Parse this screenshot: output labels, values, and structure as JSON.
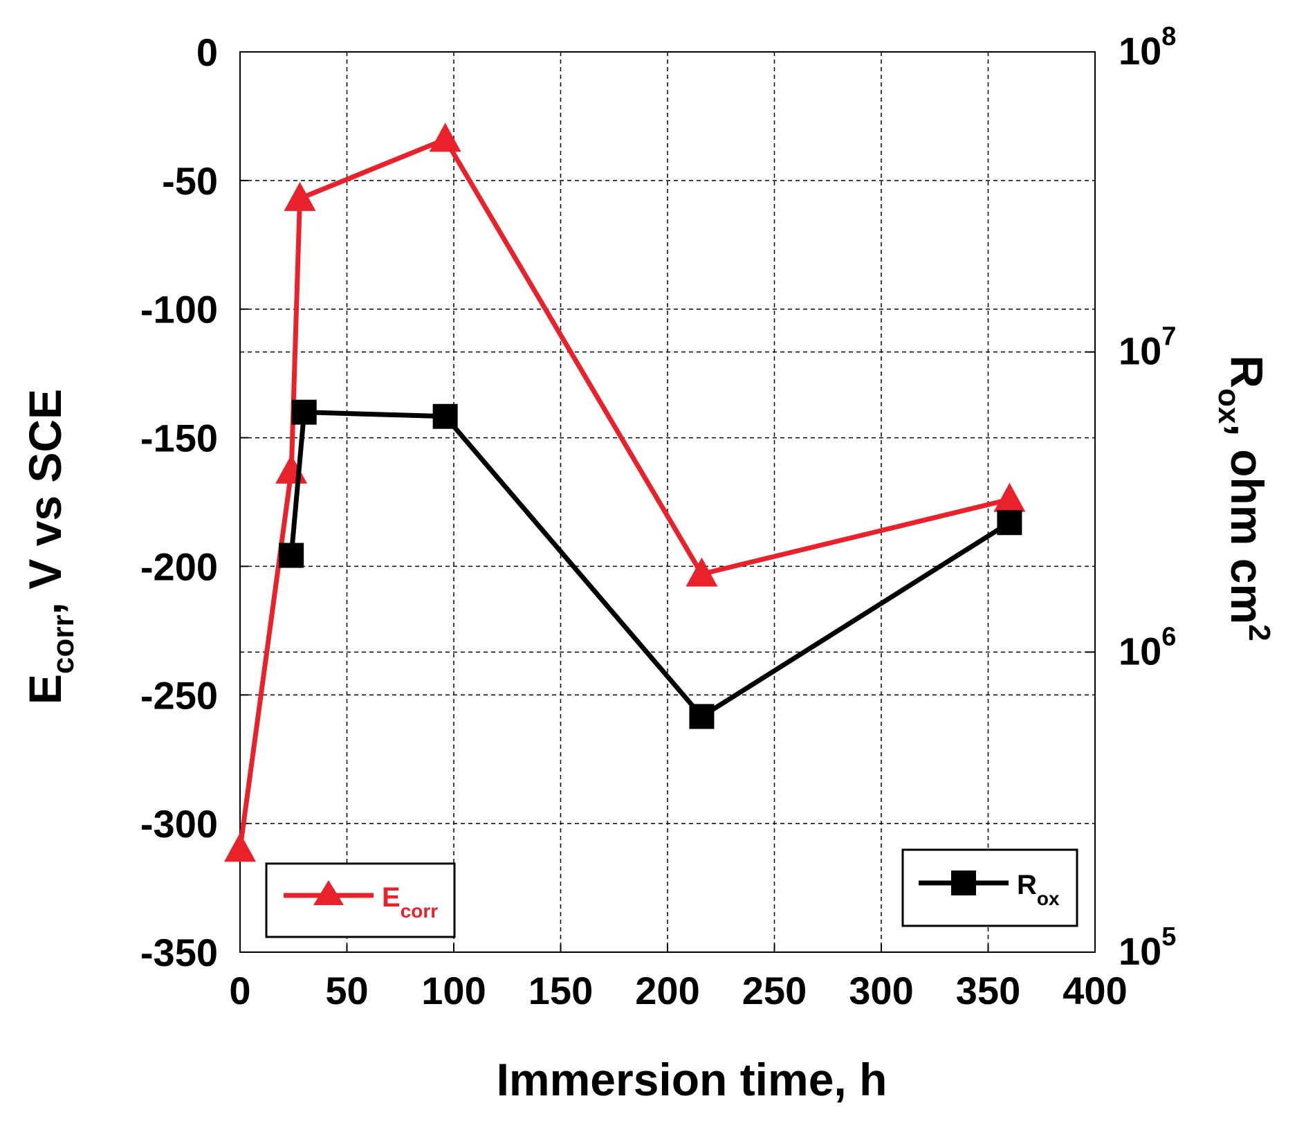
{
  "chart_data": {
    "type": "line",
    "xlabel": "Immersion time, h",
    "ylabel_left": {
      "base": "E",
      "sub": "corr",
      "rest": ", V vs SCE"
    },
    "ylabel_right": {
      "base": "R",
      "sub": "ox",
      "rest": ", ohm cm",
      "sup": "2"
    },
    "xlim": [
      0,
      400
    ],
    "ylim_left": [
      -350,
      0
    ],
    "ylim_right": [
      100000,
      100000000
    ],
    "right_scale": "log",
    "grid": true,
    "x_ticks": [
      "0",
      "50",
      "100",
      "150",
      "200",
      "250",
      "300",
      "350",
      "400"
    ],
    "y_left_ticks": [
      "0",
      "-50",
      "-100",
      "-150",
      "-200",
      "-250",
      "-300",
      "-350"
    ],
    "y_right_ticks": [
      {
        "base": "10",
        "exp": "8"
      },
      {
        "base": "10",
        "exp": "7"
      },
      {
        "base": "10",
        "exp": "6"
      },
      {
        "base": "10",
        "exp": "5"
      }
    ],
    "series": [
      {
        "name": "E_corr",
        "legend": {
          "base": "E",
          "sub": "corr"
        },
        "axis": "left",
        "marker": "triangle",
        "color": "#e8212a",
        "x": [
          0,
          24,
          28,
          96,
          216,
          360
        ],
        "y": [
          -310,
          -163,
          -57,
          -34,
          -203,
          -174
        ]
      },
      {
        "name": "R_ox",
        "legend": {
          "base": "R",
          "sub": "ox"
        },
        "axis": "right",
        "marker": "square",
        "color": "#000000",
        "x": [
          24,
          30,
          96,
          216,
          360
        ],
        "y": [
          2100000,
          6300000,
          6100000,
          610000,
          2700000
        ]
      }
    ],
    "legend_placement": [
      "bottom-left",
      "bottom-right"
    ]
  }
}
